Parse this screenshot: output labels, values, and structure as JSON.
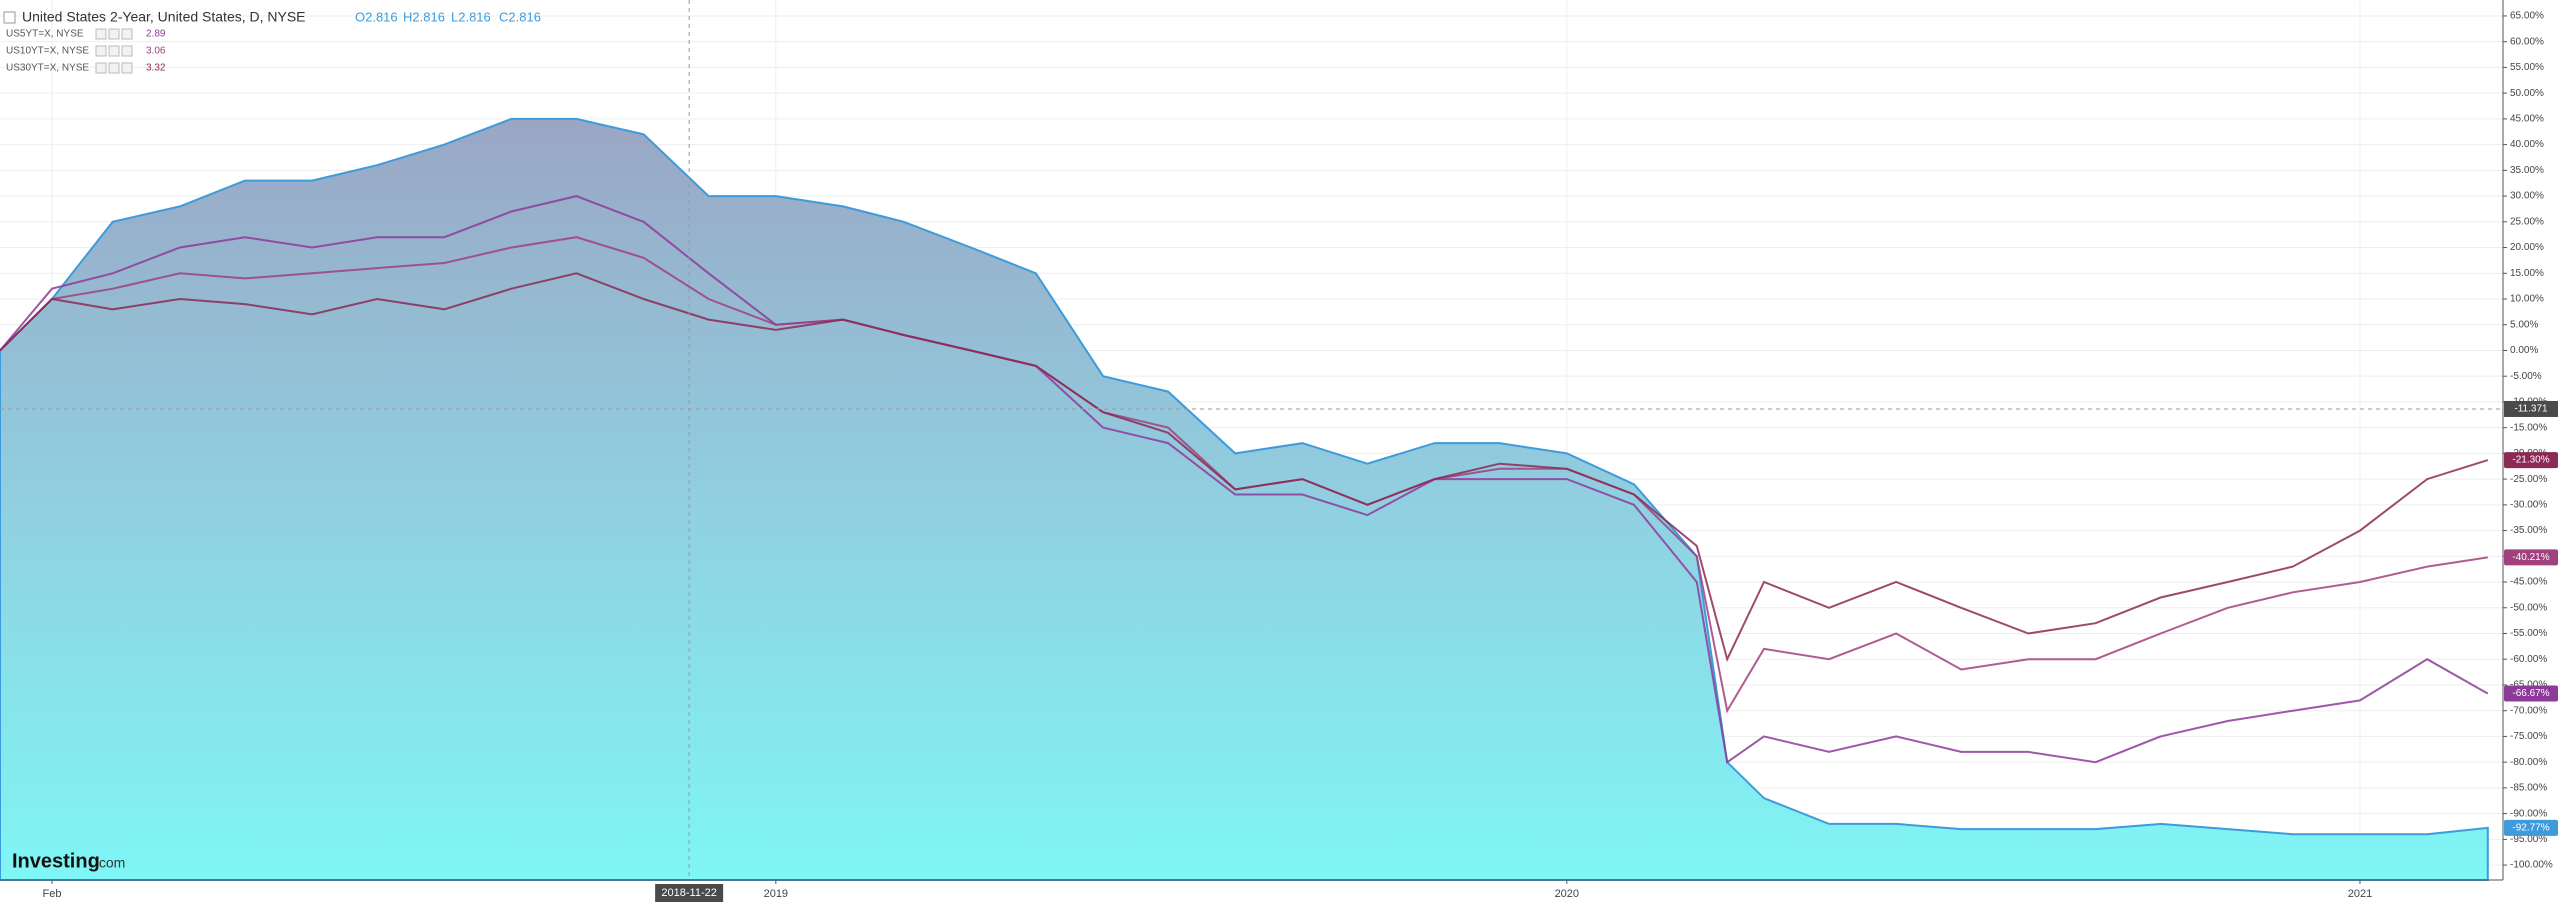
{
  "chart_data": {
    "type": "yield-comparison",
    "title": "United States 2-Year, United States, D, NYSE",
    "ohlc": [
      "O2.816",
      "H2.816",
      "L2.816",
      "C2.816"
    ],
    "brand": "Investing",
    "brand_suffix": ".com",
    "x": [
      "2018-01-08",
      "2018-02-01",
      "2018-03-01",
      "2018-04-01",
      "2018-05-01",
      "2018-06-01",
      "2018-07-01",
      "2018-08-01",
      "2018-09-01",
      "2018-10-01",
      "2018-11-01",
      "2018-12-01",
      "2019-01-01",
      "2019-02-01",
      "2019-03-01",
      "2019-04-01",
      "2019-05-01",
      "2019-06-01",
      "2019-07-01",
      "2019-08-01",
      "2019-09-01",
      "2019-10-01",
      "2019-11-01",
      "2019-12-01",
      "2020-01-01",
      "2020-02-01",
      "2020-03-01",
      "2020-03-15",
      "2020-04-01",
      "2020-05-01",
      "2020-06-01",
      "2020-07-01",
      "2020-08-01",
      "2020-09-01",
      "2020-10-01",
      "2020-11-01",
      "2020-12-01",
      "2021-01-01",
      "2021-02-01",
      "2021-03-01"
    ],
    "xlim": [
      "2018-01-08",
      "2021-03-08"
    ],
    "xticks": [
      {
        "value": "2018-02-01",
        "label": "Feb"
      },
      {
        "value": "2019-01-01",
        "label": "2019"
      },
      {
        "value": "2020-01-01",
        "label": "2020"
      },
      {
        "value": "2021-01-01",
        "label": "2021"
      }
    ],
    "ylim": [
      -102.9,
      68.1
    ],
    "yticks": [
      {
        "value": 65,
        "label": "65.00%"
      },
      {
        "value": 60,
        "label": "60.00%"
      },
      {
        "value": 55,
        "label": "55.00%"
      },
      {
        "value": 50,
        "label": "50.00%"
      },
      {
        "value": 45,
        "label": "45.00%"
      },
      {
        "value": 40,
        "label": "40.00%"
      },
      {
        "value": 35,
        "label": "35.00%"
      },
      {
        "value": 30,
        "label": "30.00%"
      },
      {
        "value": 25,
        "label": "25.00%"
      },
      {
        "value": 20,
        "label": "20.00%"
      },
      {
        "value": 15,
        "label": "15.00%"
      },
      {
        "value": 10,
        "label": "10.00%"
      },
      {
        "value": 5,
        "label": "5.00%"
      },
      {
        "value": 0,
        "label": "0.00%"
      },
      {
        "value": -5,
        "label": "-5.00%"
      },
      {
        "value": -10,
        "label": "-10.00%"
      },
      {
        "value": -15,
        "label": "-15.00%"
      },
      {
        "value": -20,
        "label": "-20.00%"
      },
      {
        "value": -25,
        "label": "-25.00%"
      },
      {
        "value": -30,
        "label": "-30.00%"
      },
      {
        "value": -35,
        "label": "-35.00%"
      },
      {
        "value": -40,
        "label": "-40.00%"
      },
      {
        "value": -45,
        "label": "-45.00%"
      },
      {
        "value": -50,
        "label": "-50.00%"
      },
      {
        "value": -55,
        "label": "-55.00%"
      },
      {
        "value": -60,
        "label": "-60.00%"
      },
      {
        "value": -65,
        "label": "-65.00%"
      },
      {
        "value": -70,
        "label": "-70.00%"
      },
      {
        "value": -75,
        "label": "-75.00%"
      },
      {
        "value": -80,
        "label": "-80.00%"
      },
      {
        "value": -85,
        "label": "-85.00%"
      },
      {
        "value": -90,
        "label": "-90.00%"
      },
      {
        "value": -95,
        "label": "-95.00%"
      },
      {
        "value": -100,
        "label": "-100.00%"
      }
    ],
    "grid": true,
    "crosshair": {
      "x": "2018-11-22",
      "y": -11.371
    },
    "series": [
      {
        "name": "United States 2-Year",
        "style": "area",
        "color": "#3d9bdc",
        "last_label": "-92.77%",
        "values": [
          0,
          10,
          25,
          28,
          33,
          33,
          36,
          40,
          45,
          45,
          42,
          30,
          30,
          28,
          25,
          20,
          15,
          -5,
          -8,
          -20,
          -18,
          -22,
          -18,
          -18,
          -20,
          -26,
          -40,
          -80,
          -87,
          -92,
          -92,
          -93,
          -93,
          -93,
          -92,
          -93,
          -94,
          -94,
          -94,
          -92.77
        ]
      },
      {
        "name": "US5YT=X, NYSE",
        "style": "line",
        "color": "#8e3a9a",
        "price": "2.89",
        "last_label": "-66.67%",
        "values": [
          0,
          12,
          15,
          20,
          22,
          20,
          22,
          22,
          27,
          30,
          25,
          15,
          5,
          6,
          3,
          0,
          -3,
          -15,
          -18,
          -28,
          -28,
          -32,
          -25,
          -25,
          -25,
          -30,
          -45,
          -80,
          -75,
          -78,
          -75,
          -78,
          -78,
          -80,
          -75,
          -72,
          -70,
          -68,
          -60,
          -66.67
        ]
      },
      {
        "name": "US10YT=X, NYSE",
        "style": "line",
        "color": "#a1407e",
        "price": "3.06",
        "last_label": "-40.21%",
        "values": [
          0,
          10,
          12,
          15,
          14,
          15,
          16,
          17,
          20,
          22,
          18,
          10,
          5,
          6,
          3,
          0,
          -3,
          -12,
          -15,
          -27,
          -25,
          -30,
          -25,
          -23,
          -23,
          -28,
          -40,
          -70,
          -58,
          -60,
          -55,
          -62,
          -60,
          -60,
          -55,
          -50,
          -47,
          -45,
          -42,
          -40.21
        ]
      },
      {
        "name": "US30YT=X, NYSE",
        "style": "line",
        "color": "#8c2a55",
        "price": "3.32",
        "last_label": "-21.30%",
        "values": [
          0,
          10,
          8,
          10,
          9,
          7,
          10,
          8,
          12,
          15,
          10,
          6,
          4,
          6,
          3,
          0,
          -3,
          -12,
          -16,
          -27,
          -25,
          -30,
          -25,
          -22,
          -23,
          -28,
          -38,
          -60,
          -45,
          -50,
          -45,
          -50,
          -55,
          -53,
          -48,
          -45,
          -42,
          -35,
          -25,
          -21.3
        ]
      }
    ]
  }
}
